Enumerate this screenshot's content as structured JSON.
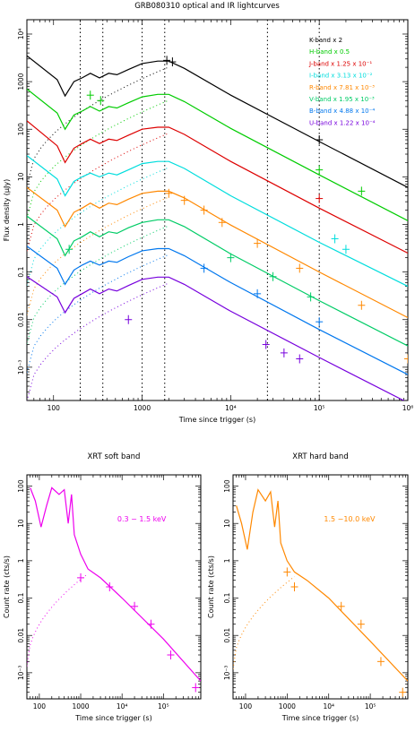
{
  "figure_title": "GRB080310 optical and IR lightcurves",
  "chart_data": [
    {
      "type": "line",
      "title": "GRB080310 optical and IR lightcurves",
      "xlabel": "Time since trigger (s)",
      "ylabel": "Flux density (μJy)",
      "xscale": "log",
      "yscale": "log",
      "xlim": [
        50,
        1000000
      ],
      "ylim": [
        0.0002,
        20000
      ],
      "xticks": [
        {
          "v": 100,
          "label": "100"
        },
        {
          "v": 1000,
          "label": "1000"
        },
        {
          "v": 10000,
          "label": "10⁴"
        },
        {
          "v": 100000,
          "label": "10⁵"
        },
        {
          "v": 1000000,
          "label": "10⁶"
        }
      ],
      "yticks": [
        {
          "v": 0.001,
          "label": "10⁻³"
        },
        {
          "v": 0.01,
          "label": "0.01"
        },
        {
          "v": 0.1,
          "label": "0.1"
        },
        {
          "v": 1,
          "label": "1"
        },
        {
          "v": 10,
          "label": "10"
        },
        {
          "v": 100,
          "label": "100"
        },
        {
          "v": 1000,
          "label": "1000"
        },
        {
          "v": 10000,
          "label": "10⁴"
        }
      ],
      "vlines": [
        200,
        360,
        1000,
        1800,
        26000,
        100000
      ],
      "legend_position": "top-right",
      "series": [
        {
          "name": "K-band x 2",
          "color": "#000000",
          "x": [
            50,
            110,
            135,
            170,
            210,
            260,
            330,
            420,
            520,
            700,
            1000,
            1500,
            2000,
            3000,
            10000,
            100000,
            1000000
          ],
          "y": [
            3500,
            1100,
            500,
            1000,
            1200,
            1500,
            1200,
            1500,
            1400,
            1800,
            2400,
            2700,
            2700,
            1900,
            520,
            55,
            6
          ],
          "points": [
            {
              "x": 1900,
              "y": 2800
            },
            {
              "x": 2200,
              "y": 2600
            },
            {
              "x": 100000,
              "y": 60
            }
          ]
        },
        {
          "name": "H-band x 0.5",
          "color": "#00cc00",
          "x": [
            50,
            110,
            135,
            170,
            210,
            260,
            330,
            420,
            520,
            700,
            1000,
            1500,
            2000,
            3000,
            10000,
            100000,
            1000000
          ],
          "y": [
            700,
            220,
            100,
            200,
            240,
            300,
            240,
            300,
            280,
            360,
            480,
            540,
            540,
            380,
            104,
            11,
            1.2
          ],
          "points": [
            {
              "x": 260,
              "y": 520
            },
            {
              "x": 340,
              "y": 400
            },
            {
              "x": 100000,
              "y": 14
            },
            {
              "x": 300000,
              "y": 5
            }
          ]
        },
        {
          "name": "J-band x 1.25 x 10⁻¹",
          "color": "#dd0000",
          "x": [
            50,
            110,
            135,
            170,
            210,
            260,
            330,
            420,
            520,
            700,
            1000,
            1500,
            2000,
            3000,
            10000,
            100000,
            1000000
          ],
          "y": [
            150,
            45,
            20,
            40,
            50,
            62,
            50,
            62,
            58,
            75,
            100,
            110,
            110,
            78,
            21,
            2.2,
            0.25
          ],
          "points": [
            {
              "x": 100000,
              "y": 3.5
            }
          ]
        },
        {
          "name": "I-band x 3.13 x 10⁻²",
          "color": "#00dddd",
          "x": [
            50,
            110,
            135,
            170,
            210,
            260,
            330,
            420,
            520,
            700,
            1000,
            1500,
            2000,
            3000,
            10000,
            100000,
            1000000
          ],
          "y": [
            28,
            9,
            4,
            8,
            10,
            12,
            10,
            12,
            11,
            14,
            19,
            21,
            21,
            15,
            4,
            0.42,
            0.05
          ],
          "points": [
            {
              "x": 150000,
              "y": 0.5
            },
            {
              "x": 200000,
              "y": 0.3
            }
          ]
        },
        {
          "name": "R-band x 7.81 x 10⁻³",
          "color": "#ff8800",
          "x": [
            50,
            110,
            135,
            170,
            210,
            260,
            330,
            420,
            520,
            700,
            1000,
            1500,
            2000,
            3000,
            10000,
            100000,
            1000000
          ],
          "y": [
            6,
            2,
            0.9,
            1.8,
            2.2,
            2.8,
            2.2,
            2.8,
            2.6,
            3.4,
            4.5,
            5,
            5,
            3.6,
            0.97,
            0.1,
            0.011
          ],
          "points": [
            {
              "x": 2000,
              "y": 4.5
            },
            {
              "x": 3000,
              "y": 3.2
            },
            {
              "x": 5000,
              "y": 2
            },
            {
              "x": 8000,
              "y": 1.1
            },
            {
              "x": 20000,
              "y": 0.4
            },
            {
              "x": 60000,
              "y": 0.12
            },
            {
              "x": 300000,
              "y": 0.02
            },
            {
              "x": 1000000,
              "y": 0.0015
            }
          ]
        },
        {
          "name": "V-band x 1.95 x 10⁻³",
          "color": "#00cc66",
          "x": [
            50,
            110,
            135,
            170,
            210,
            260,
            330,
            420,
            520,
            700,
            1000,
            1500,
            2000,
            3000,
            10000,
            100000,
            1000000
          ],
          "y": [
            1.5,
            0.5,
            0.22,
            0.45,
            0.55,
            0.7,
            0.55,
            0.7,
            0.65,
            0.85,
            1.1,
            1.25,
            1.25,
            0.9,
            0.24,
            0.025,
            0.0028
          ],
          "points": [
            {
              "x": 150,
              "y": 0.3
            },
            {
              "x": 10000,
              "y": 0.2
            },
            {
              "x": 30000,
              "y": 0.08
            },
            {
              "x": 80000,
              "y": 0.03
            }
          ]
        },
        {
          "name": "B-band x 4.88 x 10⁻⁴",
          "color": "#0077ee",
          "x": [
            50,
            110,
            135,
            170,
            210,
            260,
            330,
            420,
            520,
            700,
            1000,
            1500,
            2000,
            3000,
            10000,
            100000,
            1000000
          ],
          "y": [
            0.35,
            0.12,
            0.055,
            0.11,
            0.14,
            0.17,
            0.14,
            0.17,
            0.16,
            0.21,
            0.28,
            0.31,
            0.31,
            0.22,
            0.06,
            0.0062,
            0.0007
          ],
          "points": [
            {
              "x": 5000,
              "y": 0.12
            },
            {
              "x": 20000,
              "y": 0.035
            },
            {
              "x": 100000,
              "y": 0.009
            }
          ]
        },
        {
          "name": "U-band x 1.22 x 10⁻⁴",
          "color": "#7700dd",
          "x": [
            50,
            110,
            135,
            170,
            210,
            260,
            330,
            420,
            520,
            700,
            1000,
            1500,
            2000,
            3000,
            10000,
            100000,
            1000000
          ],
          "y": [
            0.08,
            0.03,
            0.014,
            0.028,
            0.035,
            0.044,
            0.035,
            0.044,
            0.04,
            0.052,
            0.07,
            0.078,
            0.078,
            0.055,
            0.015,
            0.0016,
            0.00018
          ],
          "points": [
            {
              "x": 700,
              "y": 0.01
            },
            {
              "x": 25000,
              "y": 0.003
            },
            {
              "x": 40000,
              "y": 0.002
            },
            {
              "x": 60000,
              "y": 0.0015
            }
          ]
        }
      ]
    },
    {
      "type": "line",
      "title": "XRT soft band",
      "xlabel": "Time since trigger (s)",
      "ylabel": "Count rate (cts/s)",
      "xscale": "log",
      "yscale": "log",
      "xlim": [
        50,
        800000
      ],
      "ylim": [
        0.0002,
        200
      ],
      "annotation": "0.3 − 1.5 keV",
      "xticks": [
        {
          "v": 100,
          "label": "100"
        },
        {
          "v": 1000,
          "label": "1000"
        },
        {
          "v": 10000,
          "label": "10⁴"
        },
        {
          "v": 100000,
          "label": "10⁵"
        }
      ],
      "yticks": [
        {
          "v": 0.001,
          "label": "10⁻³"
        },
        {
          "v": 0.01,
          "label": "0.01"
        },
        {
          "v": 0.1,
          "label": "0.1"
        },
        {
          "v": 1,
          "label": "1"
        },
        {
          "v": 10,
          "label": "10"
        },
        {
          "v": 100,
          "label": "100"
        }
      ],
      "series": [
        {
          "name": "",
          "color": "#ee00ee",
          "x": [
            60,
            80,
            110,
            150,
            200,
            300,
            400,
            500,
            600,
            700,
            1000,
            1500,
            3000,
            10000,
            100000,
            800000
          ],
          "y": [
            90,
            40,
            8,
            30,
            90,
            60,
            80,
            10,
            60,
            5,
            1.5,
            0.6,
            0.35,
            0.1,
            0.008,
            0.0006
          ],
          "points": [
            {
              "x": 1000,
              "y": 0.35
            },
            {
              "x": 5000,
              "y": 0.2
            },
            {
              "x": 20000,
              "y": 0.06
            },
            {
              "x": 50000,
              "y": 0.02
            },
            {
              "x": 150000,
              "y": 0.003
            },
            {
              "x": 600000,
              "y": 0.0004
            }
          ]
        }
      ]
    },
    {
      "type": "line",
      "title": "XRT hard band",
      "xlabel": "Time since trigger (s)",
      "ylabel": "Count rate (cts/s)",
      "xscale": "log",
      "yscale": "log",
      "xlim": [
        50,
        800000
      ],
      "ylim": [
        0.0002,
        200
      ],
      "annotation": "1.5 −10.0 keV",
      "xticks": [
        {
          "v": 100,
          "label": "100"
        },
        {
          "v": 1000,
          "label": "1000"
        },
        {
          "v": 10000,
          "label": "10⁴"
        },
        {
          "v": 100000,
          "label": "10⁵"
        }
      ],
      "yticks": [
        {
          "v": 0.001,
          "label": "10⁻³"
        },
        {
          "v": 0.01,
          "label": "0.01"
        },
        {
          "v": 0.1,
          "label": "0.1"
        },
        {
          "v": 1,
          "label": "1"
        },
        {
          "v": 10,
          "label": "10"
        },
        {
          "v": 100,
          "label": "100"
        }
      ],
      "series": [
        {
          "name": "",
          "color": "#ff8800",
          "x": [
            60,
            80,
            110,
            150,
            200,
            300,
            400,
            500,
            600,
            700,
            1000,
            1500,
            3000,
            10000,
            100000,
            800000
          ],
          "y": [
            30,
            10,
            2,
            20,
            80,
            40,
            70,
            8,
            40,
            3,
            1,
            0.5,
            0.3,
            0.1,
            0.007,
            0.0006
          ],
          "points": [
            {
              "x": 1000,
              "y": 0.5
            },
            {
              "x": 1500,
              "y": 0.2
            },
            {
              "x": 20000,
              "y": 0.06
            },
            {
              "x": 60000,
              "y": 0.02
            },
            {
              "x": 180000,
              "y": 0.002
            },
            {
              "x": 600000,
              "y": 0.0003
            }
          ]
        }
      ]
    }
  ]
}
